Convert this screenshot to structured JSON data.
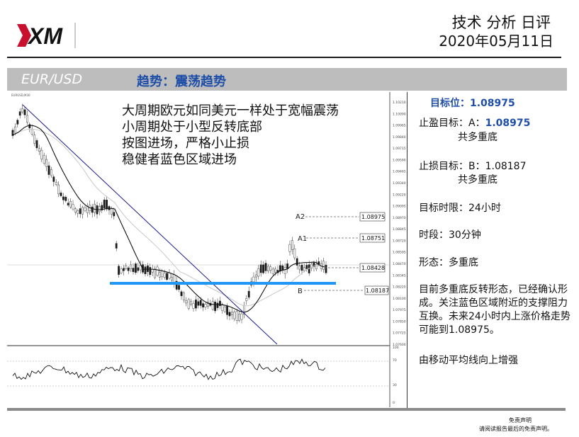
{
  "header": {
    "logo_text": "XM",
    "title": "技术 分析 日评",
    "date": "2020年05月11日"
  },
  "bar": {
    "pair": "EUR/USD",
    "trend": "趋势：震荡趋势"
  },
  "chart": {
    "corner_label": "EURUSD,M30",
    "annotations": [
      "大周期欧元如同美元一样处于宽幅震荡",
      "小周期处于小型反转底部",
      "按图进场，严格小止损",
      "稳健者蓝色区域进场"
    ],
    "levels": [
      {
        "name": "A2",
        "value": "1.08975"
      },
      {
        "name": "A1",
        "value": "1.08751"
      },
      {
        "name": "",
        "value": "1.08428"
      },
      {
        "name": "B",
        "value": "1.08187"
      }
    ],
    "price_axis": [
      "1.10210",
      "1.10090",
      "1.09965",
      "1.09840",
      "1.09715",
      "1.09590",
      "1.09465",
      "1.09340",
      "1.09220",
      "1.09095",
      "1.08970",
      "1.08845",
      "1.08720",
      "1.08595",
      "1.08470",
      "1.08345",
      "1.08220",
      "1.08100",
      "1.07975",
      "1.07850",
      "1.07725",
      "1.07600"
    ],
    "osc_axis": [
      "100",
      "70",
      "30",
      "0"
    ],
    "colors": {
      "candle_up": "#1a1a1a",
      "candle_down": "#d0d0d0",
      "support": "#2196f3",
      "trendline": "#1a1a8c"
    }
  },
  "right_panel": {
    "target": "目标位：1.08975",
    "take_profit_label": "止盈目标：A：",
    "take_profit_value": "1.08975",
    "take_profit_sub": "共多重底",
    "stop_loss": "止损目标：B：1.08187",
    "stop_loss_sub": "共多重底",
    "time_limit": "目标时限：24小时",
    "period": "时段：30分钟",
    "pattern": "形态：多重底",
    "description": "目前多重底反转形态，已经确认形成。关注蓝色区域附近的支撑阻力互换。未来24小时内上涨价格走势可能到1.08975。",
    "note": "由移动平均线向上增强"
  },
  "footer": {
    "disclaimer_title": "免责声明",
    "disclaimer_text": "请阅读报告最后的免责声明。"
  }
}
